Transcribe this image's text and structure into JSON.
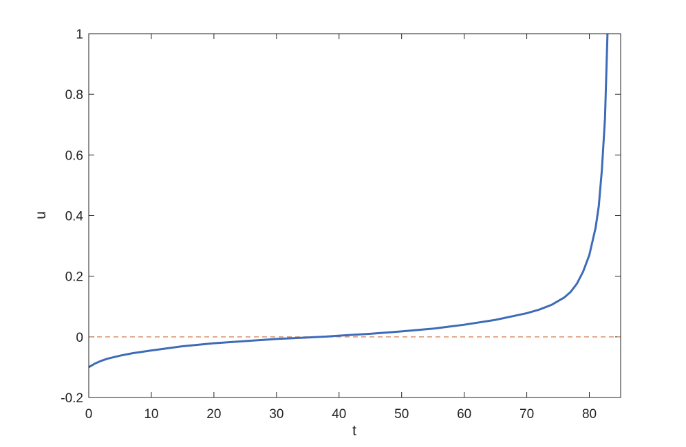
{
  "chart_data": {
    "type": "line",
    "xlabel": "t",
    "ylabel": "u",
    "x": [
      0,
      1,
      2,
      3,
      5,
      7,
      10,
      15,
      20,
      25,
      30,
      35,
      38,
      40,
      45,
      50,
      55,
      60,
      65,
      70,
      72,
      74,
      76,
      77,
      78,
      79,
      80,
      81,
      81.5,
      82,
      82.5,
      82.9
    ],
    "series": [
      {
        "color": "#3d6bb8",
        "values": [
          -0.1,
          -0.088,
          -0.079,
          -0.072,
          -0.062,
          -0.054,
          -0.045,
          -0.031,
          -0.021,
          -0.014,
          -0.007,
          -0.002,
          0.001,
          0.004,
          0.01,
          0.018,
          0.027,
          0.04,
          0.056,
          0.078,
          0.09,
          0.106,
          0.13,
          0.148,
          0.175,
          0.215,
          0.27,
          0.36,
          0.43,
          0.55,
          0.72,
          1.0
        ]
      }
    ],
    "hline": {
      "value": 0,
      "color": "#d9906a",
      "dashed": true
    },
    "xlim": [
      0,
      85
    ],
    "xticks": [
      0,
      10,
      20,
      30,
      40,
      50,
      60,
      70,
      80
    ],
    "ylim": [
      -0.2,
      1
    ],
    "yticks": [
      -0.2,
      0,
      0.2,
      0.4,
      0.6,
      0.8,
      1
    ],
    "box": true,
    "grid": false
  }
}
